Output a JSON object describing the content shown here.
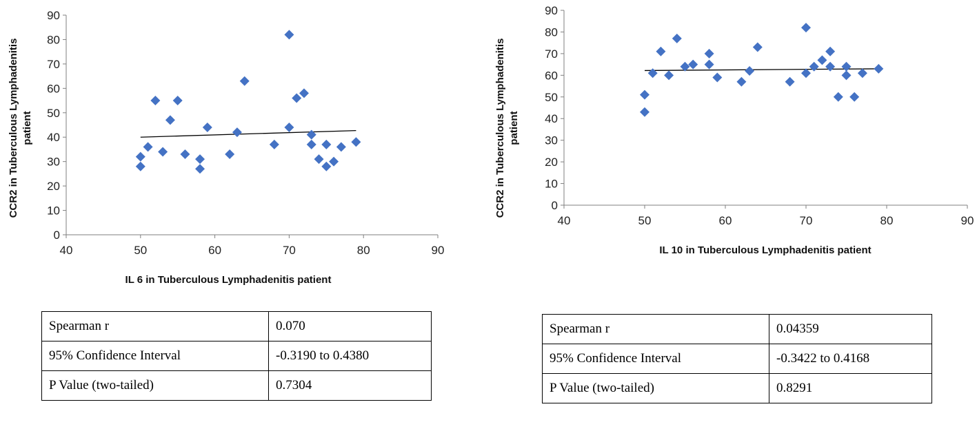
{
  "colors": {
    "marker": "#4472C4",
    "trendline": "#000000",
    "axis": "#7f7f7f"
  },
  "chart_data": [
    {
      "type": "scatter",
      "title": "",
      "xlabel": "IL 6 in Tuberculous Lymphadenitis patient",
      "ylabel": "CCR2 in Tuberculous Lymphadenitis patient",
      "xlim": [
        40,
        90
      ],
      "ylim": [
        0,
        90
      ],
      "xticks": [
        "40",
        "50",
        "60",
        "70",
        "80",
        "90"
      ],
      "yticks": [
        "0",
        "10",
        "20",
        "30",
        "40",
        "50",
        "60",
        "70",
        "80",
        "90"
      ],
      "x": [
        50,
        50,
        51,
        52,
        53,
        54,
        55,
        56,
        58,
        58,
        59,
        62,
        63,
        64,
        68,
        70,
        70,
        71,
        72,
        73,
        73,
        74,
        75,
        75,
        76,
        77,
        79
      ],
      "y": [
        32,
        28,
        36,
        55,
        34,
        47,
        55,
        33,
        31,
        27,
        44,
        33,
        42,
        63,
        37,
        82,
        44,
        56,
        58,
        41,
        37,
        31,
        37,
        28,
        30,
        36,
        38
      ],
      "trendline": {
        "x": [
          50,
          79
        ],
        "y": [
          40,
          42.7
        ]
      }
    },
    {
      "type": "scatter",
      "title": "",
      "xlabel": "IL 10 in Tuberculous Lymphadenitis patient",
      "ylabel": "CCR2 in Tuberculous Lymphadenitis patient",
      "xlim": [
        40,
        90
      ],
      "ylim": [
        0,
        90
      ],
      "xticks": [
        "40",
        "50",
        "60",
        "70",
        "80",
        "90"
      ],
      "yticks": [
        "0",
        "10",
        "20",
        "30",
        "40",
        "50",
        "60",
        "70",
        "80",
        "90"
      ],
      "x": [
        50,
        50,
        51,
        52,
        53,
        54,
        55,
        56,
        58,
        58,
        59,
        62,
        63,
        64,
        68,
        70,
        70,
        71,
        72,
        73,
        73,
        74,
        75,
        75,
        76,
        77,
        79
      ],
      "y": [
        51,
        43,
        61,
        71,
        60,
        77,
        64,
        65,
        70,
        65,
        59,
        57,
        62,
        73,
        57,
        82,
        61,
        64,
        67,
        71,
        64,
        50,
        64,
        60,
        50,
        61,
        63
      ],
      "trendline": {
        "x": [
          50,
          79
        ],
        "y": [
          62.2,
          63.0
        ]
      }
    }
  ],
  "tables": [
    {
      "rows": [
        {
          "label": "Spearman r",
          "value": "0.070"
        },
        {
          "label": "95% Confidence Interval",
          "value": "-0.3190 to 0.4380"
        },
        {
          "label": "P Value (two-tailed)",
          "value": "0.7304"
        }
      ]
    },
    {
      "rows": [
        {
          "label": "Spearman r",
          "value": "0.04359"
        },
        {
          "label": "95% Confidence Interval",
          "value": "-0.3422 to 0.4168"
        },
        {
          "label": "P Value (two-tailed)",
          "value": "0.8291"
        }
      ]
    }
  ]
}
